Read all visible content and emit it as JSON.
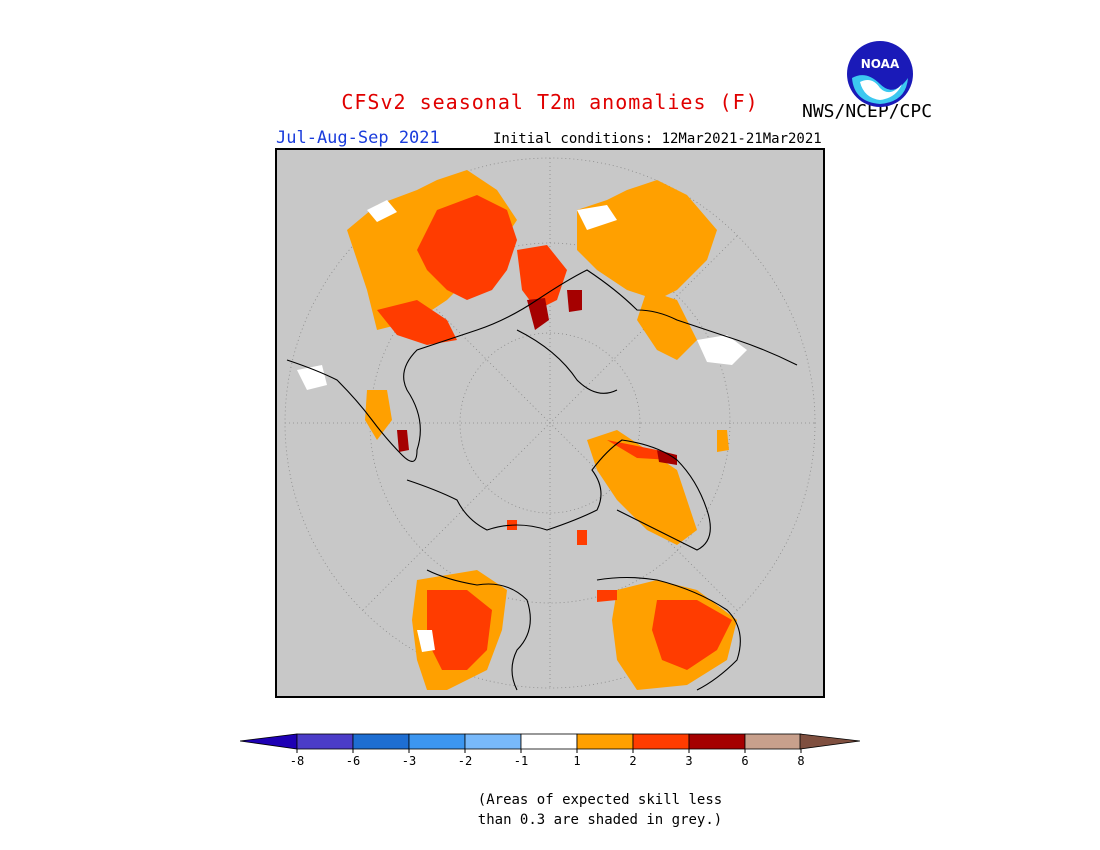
{
  "header": {
    "title": "CFSv2 seasonal T2m anomalies (F)",
    "period": "Jul-Aug-Sep 2021",
    "initial_conditions": "Initial conditions: 12Mar2021-21Mar2021",
    "agency": "NWS/NCEP/CPC",
    "logo_text": "NOAA"
  },
  "map": {
    "projection": "polar stereographic (north pole)",
    "background_color": "#c8c8c8"
  },
  "legend": {
    "colors": [
      "#1e00b4",
      "#4b3cc8",
      "#1e6ed2",
      "#3c96f0",
      "#78b9fa",
      "#ffffff",
      "#ffa000",
      "#ff3c00",
      "#a50000",
      "#c8a08c",
      "#7f4f3f"
    ],
    "tick_labels": [
      "-8",
      "-6",
      "-3",
      "-2",
      "-1",
      "1",
      "2",
      "3",
      "6",
      "8"
    ]
  },
  "note": {
    "line1": "(Areas of expected skill less",
    "line2": "than 0.3 are shaded in grey.)"
  }
}
